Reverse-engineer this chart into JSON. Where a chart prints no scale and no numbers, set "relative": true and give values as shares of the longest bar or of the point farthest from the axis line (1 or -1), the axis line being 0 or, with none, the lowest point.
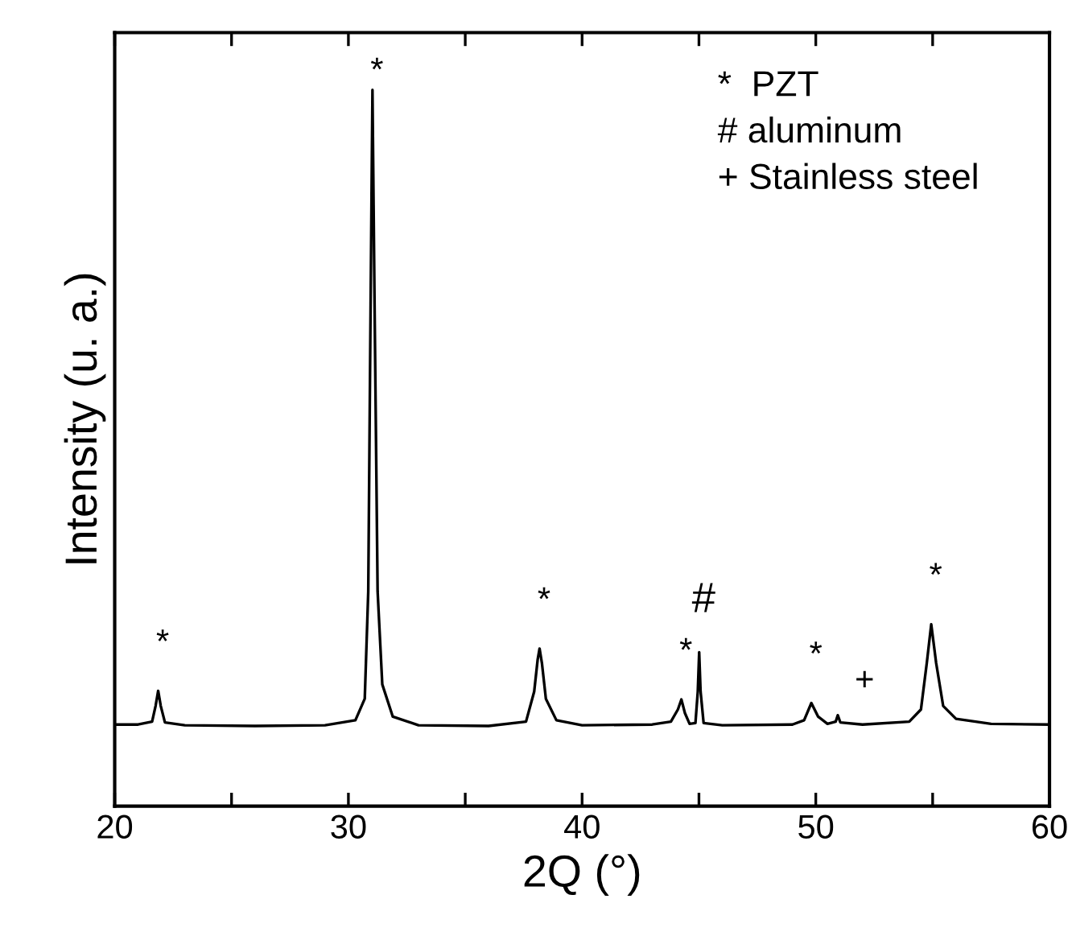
{
  "chart_data": {
    "type": "line",
    "relative": true,
    "xlabel": "2Q (°)",
    "ylabel": "Intensity (u. a.)",
    "xlim": [
      20,
      60
    ],
    "xticks": [
      20,
      {
        "value": 25,
        "label": null
      },
      30,
      {
        "value": 35,
        "label": null
      },
      40,
      {
        "value": 45,
        "label": null
      },
      50,
      {
        "value": 55,
        "label": null
      },
      60
    ],
    "tick_labels": "x",
    "grid": false,
    "series": [
      {
        "color": "#000000",
        "x": [
          20.0,
          21.0,
          21.6,
          21.75,
          21.86,
          21.97,
          22.15,
          23.0,
          26.0,
          29.0,
          30.3,
          30.7,
          30.85,
          30.95,
          31.03,
          31.12,
          31.25,
          31.45,
          31.9,
          33.0,
          36.0,
          37.6,
          37.95,
          38.1,
          38.18,
          38.28,
          38.45,
          38.9,
          40.0,
          43.0,
          43.8,
          44.1,
          44.25,
          44.4,
          44.6,
          44.85,
          44.95,
          45.01,
          45.07,
          45.2,
          46.0,
          49.0,
          49.5,
          49.81,
          50.1,
          50.5,
          50.85,
          50.94,
          51.05,
          52.0,
          54.0,
          54.5,
          54.75,
          54.94,
          55.15,
          55.45,
          56.0,
          57.5,
          60.0
        ],
        "values": [
          0.114,
          0.114,
          0.118,
          0.14,
          0.161,
          0.14,
          0.117,
          0.113,
          0.112,
          0.113,
          0.12,
          0.15,
          0.3,
          0.7,
          1.0,
          0.7,
          0.3,
          0.17,
          0.125,
          0.113,
          0.112,
          0.118,
          0.16,
          0.205,
          0.22,
          0.2,
          0.15,
          0.12,
          0.113,
          0.114,
          0.118,
          0.135,
          0.149,
          0.13,
          0.115,
          0.116,
          0.16,
          0.215,
          0.16,
          0.116,
          0.113,
          0.114,
          0.12,
          0.144,
          0.125,
          0.115,
          0.118,
          0.127,
          0.117,
          0.114,
          0.118,
          0.135,
          0.2,
          0.254,
          0.2,
          0.14,
          0.122,
          0.115,
          0.114
        ]
      }
    ],
    "annotations": [
      {
        "text": "*",
        "x": 21.86,
        "y": 0.161
      },
      {
        "text": "*",
        "x": 31.03,
        "y": 1.0
      },
      {
        "text": "*",
        "x": 38.18,
        "y": 0.22
      },
      {
        "text": "*",
        "x": 44.25,
        "y": 0.149
      },
      {
        "text": "#",
        "x": 45.01,
        "y": 0.215
      },
      {
        "text": "*",
        "x": 49.81,
        "y": 0.144
      },
      {
        "text": "+",
        "x": 50.94,
        "y": 0.127
      },
      {
        "text": "*",
        "x": 54.94,
        "y": 0.254
      },
      "*  PZT",
      "# aluminum",
      "+ Stainless steel"
    ]
  }
}
